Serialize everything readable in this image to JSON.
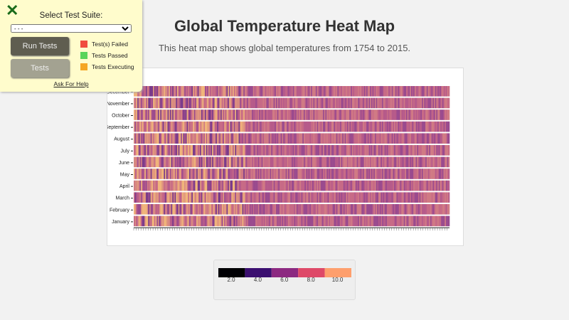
{
  "panel": {
    "select_label": "Select Test Suite:",
    "select_value": "- - -",
    "run_label": "Run Tests",
    "tests_label": "Tests",
    "legend": [
      {
        "label": "Test(s) Failed",
        "color": "#f04c3e"
      },
      {
        "label": "Tests Passed",
        "color": "#5ad45a"
      },
      {
        "label": "Tests Executing",
        "color": "#f5a623"
      }
    ],
    "help_label": "Ask For Help",
    "close_icon": "close-x-icon"
  },
  "page": {
    "title": "Global Temperature Heat Map",
    "description": "This heat map shows global temperatures from 1754 to 2015."
  },
  "chart_data": {
    "type": "heatmap",
    "x_range": [
      1754,
      2015
    ],
    "months": [
      "January",
      "February",
      "March",
      "April",
      "May",
      "June",
      "July",
      "August",
      "September",
      "October",
      "November",
      "December"
    ],
    "legend": {
      "ticks": [
        "2.0",
        "4.0",
        "6.0",
        "8.0",
        "10.0"
      ],
      "colors": [
        "#000004",
        "#3b0f70",
        "#8c2981",
        "#de4968",
        "#fe9f6d"
      ]
    }
  }
}
